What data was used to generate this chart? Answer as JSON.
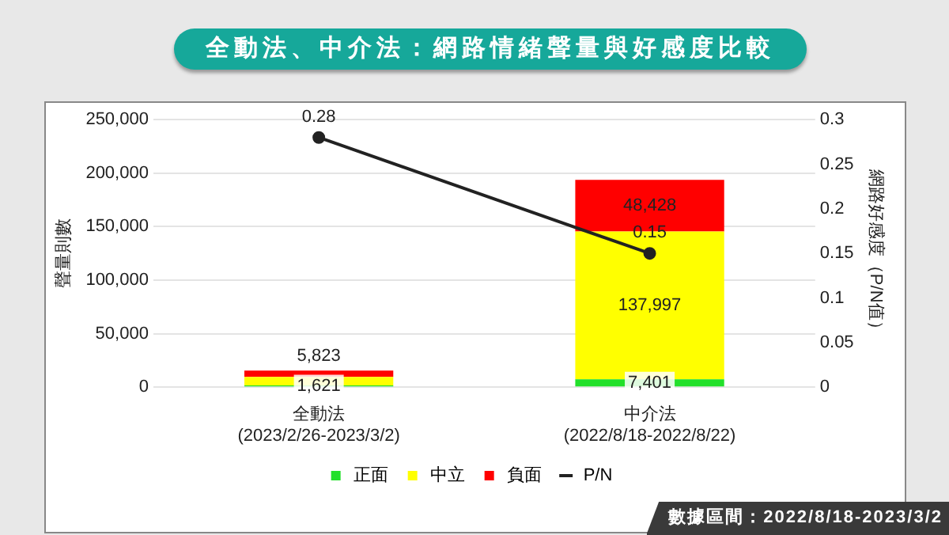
{
  "chart_data": {
    "type": "bar",
    "title": "全動法、中介法：網路情緒聲量與好感度比較",
    "ylabel": "聲量則數",
    "y2label": "網路好感度（P/N值）",
    "categories": [
      "全動法\n(2023/2/26-2023/3/2)",
      "中介法\n(2022/8/18-2022/8/22)"
    ],
    "stacked": true,
    "series": [
      {
        "name": "正面",
        "color": "#22e02a",
        "values": [
          1621,
          7401
        ],
        "value_labels": [
          "1,621",
          "7,401"
        ]
      },
      {
        "name": "中立",
        "color": "#ffff00",
        "values": [
          8000,
          137997
        ],
        "value_labels": [
          null,
          "137,997"
        ]
      },
      {
        "name": "負面",
        "color": "#ff0000",
        "values": [
          5823,
          48428
        ],
        "value_labels": [
          "5,823",
          "48,428"
        ]
      },
      {
        "name": "P/N",
        "type": "line",
        "axis": "y2",
        "color": "#222222",
        "values": [
          0.28,
          0.15
        ],
        "value_labels": [
          "0.28",
          "0.15"
        ],
        "marker": "circle",
        "line_style": "solid"
      }
    ],
    "ylim": [
      0,
      250000
    ],
    "yticks": [
      {
        "value": 0,
        "label": "0"
      },
      {
        "value": 50000,
        "label": "50,000"
      },
      {
        "value": 100000,
        "label": "100,000"
      },
      {
        "value": 150000,
        "label": "150,000"
      },
      {
        "value": 200000,
        "label": "200,000"
      },
      {
        "value": 250000,
        "label": "250,000"
      }
    ],
    "y2lim": [
      0,
      0.3
    ],
    "y2ticks": [
      0,
      0.05,
      0.1,
      0.15,
      0.2,
      0.25,
      0.3
    ],
    "grid": "y",
    "legend": "bottom",
    "annotations": [
      "數據區間：2022/8/18-2023/3/2"
    ]
  }
}
